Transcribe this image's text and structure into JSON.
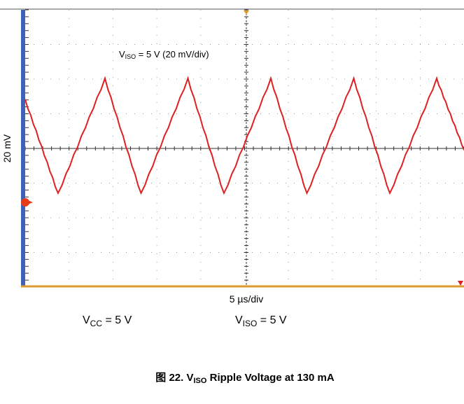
{
  "scope": {
    "annotation": {
      "main": "V",
      "sub": "ISO",
      "rest": " = 5 V (20 mV/div)"
    },
    "y_scale": "20 mV",
    "x_scale": "5 µs/div"
  },
  "conditions": [
    {
      "main": "V",
      "sub": "CC",
      "rest": " = 5 V"
    },
    {
      "main": "V",
      "sub": "ISO",
      "rest": " = 5 V"
    }
  ],
  "caption": {
    "prefix": "图 22. V",
    "sub": "ISO",
    "rest": " Ripple Voltage at 130 mA"
  }
}
